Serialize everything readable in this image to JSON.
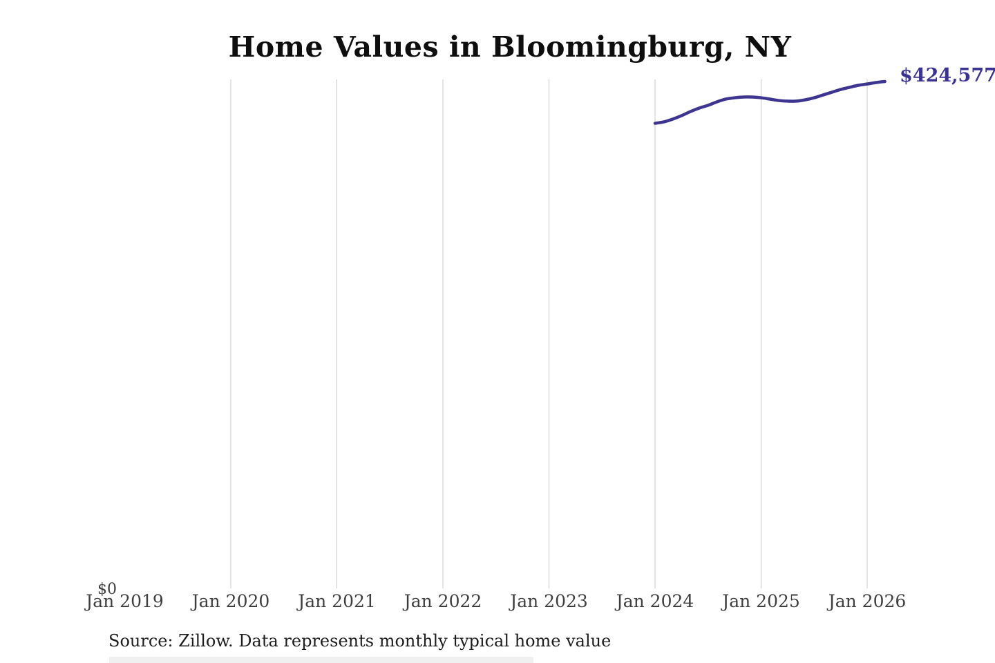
{
  "chart": {
    "title": "Home Values in Bloomingburg, NY",
    "end_value_label": "$424,577",
    "y_zero_label": "$0",
    "source": "Source: Zillow. Data represents monthly typical home value",
    "line_color": "#3e3590",
    "end_label_color": "#3b3295",
    "grid_color": "#c9c9c9"
  },
  "chart_data": {
    "type": "line",
    "title": "Home Values in Bloomingburg, NY",
    "xlabel": "",
    "ylabel": "",
    "ylim": [
      0,
      426000
    ],
    "grid": "vertical-only",
    "legend_position": "none",
    "x_ticks": [
      {
        "label": "Jan 2019",
        "gridline": false
      },
      {
        "label": "Jan 2020",
        "gridline": true
      },
      {
        "label": "Jan 2021",
        "gridline": true
      },
      {
        "label": "Jan 2022",
        "gridline": true
      },
      {
        "label": "Jan 2023",
        "gridline": true
      },
      {
        "label": "Jan 2024",
        "gridline": true
      },
      {
        "label": "Jan 2025",
        "gridline": true
      },
      {
        "label": "Jan 2026",
        "gridline": true
      }
    ],
    "y_tick_labels": [
      "$0"
    ],
    "annotation": "$424,577",
    "source": "Source: Zillow. Data represents monthly typical home value",
    "series": [
      {
        "name": "Monthly typical home value",
        "x": [
          "2024-01",
          "2024-02",
          "2024-03",
          "2024-04",
          "2024-05",
          "2024-06",
          "2024-07",
          "2024-08",
          "2024-09",
          "2024-10",
          "2024-11",
          "2024-12",
          "2025-01",
          "2025-02",
          "2025-03",
          "2025-04",
          "2025-05",
          "2025-06",
          "2025-07",
          "2025-08",
          "2025-09",
          "2025-10",
          "2025-11",
          "2025-12",
          "2026-01",
          "2026-02",
          "2026-03"
        ],
        "values": [
          389700,
          390900,
          393200,
          396100,
          399500,
          402400,
          404700,
          407600,
          409900,
          411000,
          411600,
          411600,
          411000,
          409900,
          408700,
          408200,
          408200,
          409300,
          411000,
          413300,
          415600,
          417900,
          419700,
          421400,
          422500,
          423700,
          424577
        ]
      }
    ]
  }
}
